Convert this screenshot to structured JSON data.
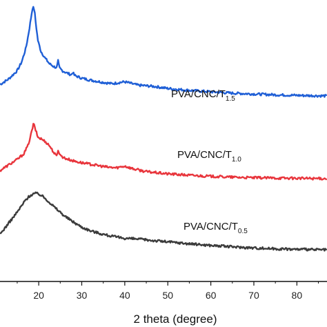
{
  "chart_data": {
    "type": "line",
    "title": "",
    "xlabel": "2 theta (degree)",
    "ylabel": "",
    "xlim": [
      11,
      87
    ],
    "ylim": [
      0,
      100
    ],
    "xticks": [
      20,
      30,
      40,
      50,
      60,
      70,
      80
    ],
    "grid": false,
    "legend": "none",
    "series": [
      {
        "name_main": "PVA/CNC/T",
        "name_sub": "1.5",
        "color": "#1f5fd6",
        "x": [
          11,
          13,
          15,
          16,
          17,
          17.6,
          18.2,
          18.6,
          19.0,
          19.4,
          19.8,
          20.5,
          21.5,
          22.5,
          23.5,
          24.2,
          24.5,
          24.8,
          25.5,
          26.5,
          27.6,
          27.9,
          28.3,
          30,
          32,
          35,
          37,
          39,
          40,
          41,
          43,
          47,
          50,
          55,
          60,
          65,
          70,
          75,
          80,
          87
        ],
        "y": [
          71,
          73,
          76,
          79,
          84,
          89,
          95,
          99,
          98,
          92,
          87,
          83,
          80.5,
          78.5,
          77.5,
          77,
          79.5,
          77,
          76,
          75.2,
          74.5,
          75.5,
          74.3,
          73.3,
          72.6,
          71.8,
          71.3,
          71.8,
          72,
          71.6,
          70.8,
          70.3,
          69.6,
          68.9,
          68.4,
          67.9,
          67.6,
          67.3,
          67.1,
          66.9
        ]
      },
      {
        "name_main": "PVA/CNC/T",
        "name_sub": "1.0",
        "color": "#e8353c",
        "x": [
          11,
          13,
          15,
          16.5,
          17.5,
          18.2,
          18.8,
          19.3,
          19.8,
          20.5,
          21.5,
          22.5,
          23.5,
          24.2,
          24.5,
          25,
          26,
          28,
          30,
          33,
          36,
          38,
          40,
          42,
          45,
          50,
          55,
          60,
          65,
          70,
          75,
          80,
          87
        ],
        "y": [
          40,
          42,
          44,
          46,
          49,
          53,
          57,
          54.5,
          52,
          51.5,
          50.5,
          49,
          46.5,
          45,
          47.5,
          45.5,
          44.5,
          43.5,
          42.8,
          42,
          41.2,
          41,
          41.6,
          40.6,
          39.6,
          38.8,
          38.3,
          37.9,
          37.6,
          37.4,
          37.3,
          37.2,
          37.1
        ]
      },
      {
        "name_main": "PVA/CNC/T",
        "name_sub": "0.5",
        "color": "#3b3b3b",
        "x": [
          11,
          13,
          15,
          17,
          18,
          19,
          20,
          21,
          22,
          23,
          24,
          25,
          26,
          28,
          30,
          32,
          35,
          38,
          40,
          43,
          45,
          50,
          55,
          60,
          65,
          70,
          75,
          80,
          87
        ],
        "y": [
          17,
          21,
          25,
          29.5,
          31,
          31.8,
          31.6,
          30.6,
          29.3,
          27.8,
          26.3,
          25,
          23.6,
          21.5,
          19.6,
          18.3,
          17,
          16,
          15.6,
          15.3,
          15,
          14.3,
          13.6,
          13,
          12.5,
          12.1,
          11.8,
          11.6,
          11.4
        ]
      }
    ]
  }
}
